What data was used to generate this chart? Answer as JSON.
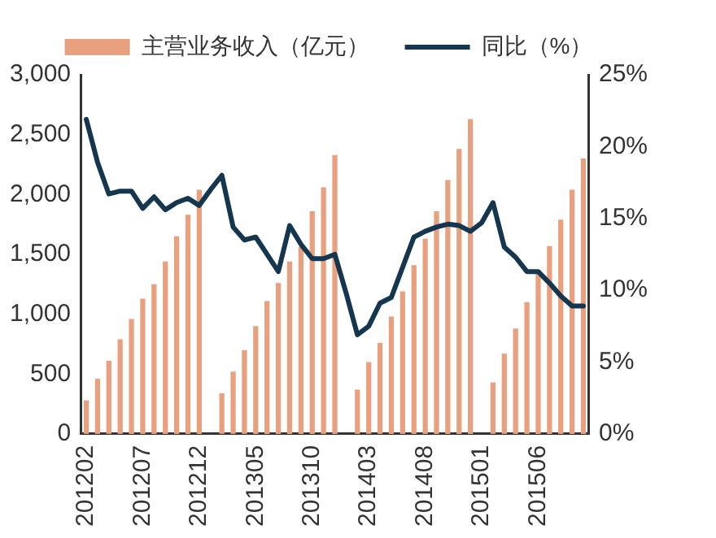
{
  "chart_data": {
    "type": "bar",
    "categories": [
      "201202",
      null,
      null,
      null,
      null,
      "201207",
      null,
      null,
      null,
      null,
      "201212",
      null,
      null,
      null,
      null,
      "201305",
      null,
      null,
      null,
      null,
      "201310",
      null,
      null,
      null,
      null,
      "201403",
      null,
      null,
      null,
      null,
      "201408",
      null,
      null,
      null,
      null,
      "201501",
      null,
      null,
      null,
      null,
      "201506",
      null,
      null,
      null,
      null
    ],
    "series": [
      {
        "name": "主营业务收入（亿元）",
        "color": "#e8a07e",
        "values": [
          280,
          460,
          610,
          790,
          960,
          1130,
          1250,
          1440,
          1650,
          1830,
          2040,
          null,
          340,
          520,
          700,
          900,
          1110,
          1260,
          1440,
          1560,
          1860,
          2060,
          2330,
          null,
          370,
          600,
          760,
          980,
          1190,
          1410,
          1630,
          1860,
          2120,
          2380,
          2630,
          null,
          430,
          670,
          880,
          1100,
          1350,
          1570,
          1790,
          2040,
          2300
        ]
      },
      {
        "name": "同比（%）",
        "type": "line",
        "axis": "y2",
        "color": "#14364f",
        "values": [
          21.9,
          18.9,
          16.7,
          16.9,
          16.9,
          15.7,
          16.5,
          15.6,
          16.1,
          16.4,
          15.9,
          17.0,
          18.0,
          14.4,
          13.5,
          13.7,
          12.5,
          11.3,
          14.5,
          13.2,
          12.2,
          12.2,
          12.5,
          9.8,
          6.9,
          7.5,
          9.1,
          9.5,
          11.6,
          13.7,
          14.1,
          14.4,
          14.6,
          14.5,
          14.1,
          14.7,
          16.1,
          13.0,
          12.3,
          11.3,
          11.3,
          10.5,
          9.6,
          8.9,
          8.9
        ]
      }
    ],
    "ylim": [
      0,
      3000
    ],
    "yticks": [
      {
        "value": 0,
        "label": "0"
      },
      {
        "value": 500,
        "label": "500"
      },
      {
        "value": 1000,
        "label": "1,000"
      },
      {
        "value": 1500,
        "label": "1,500"
      },
      {
        "value": 2000,
        "label": "2,000"
      },
      {
        "value": 2500,
        "label": "2,500"
      },
      {
        "value": 3000,
        "label": "3,000"
      }
    ],
    "y2lim": [
      0,
      25
    ],
    "y2ticks": [
      {
        "value": 0,
        "label": "0%"
      },
      {
        "value": 5,
        "label": "5%"
      },
      {
        "value": 10,
        "label": "10%"
      },
      {
        "value": 15,
        "label": "15%"
      },
      {
        "value": 20,
        "label": "20%"
      },
      {
        "value": 25,
        "label": "25%"
      }
    ],
    "grid": false,
    "legend": "top",
    "marker": "none",
    "line_style": "solid"
  }
}
